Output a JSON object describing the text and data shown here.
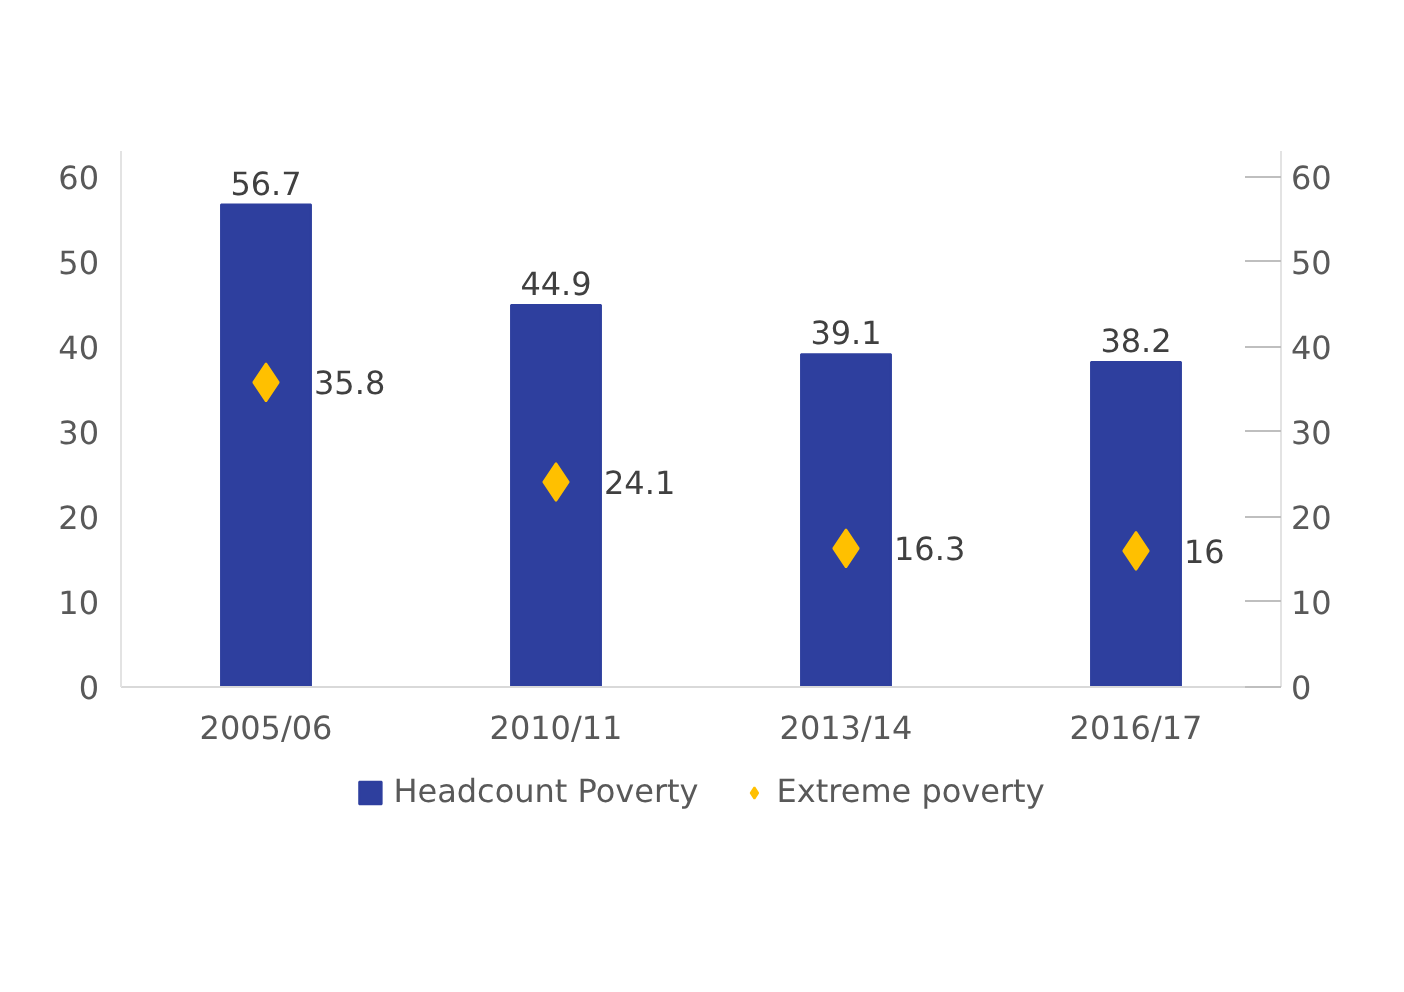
{
  "chart_data": {
    "type": "bar",
    "categories": [
      "2005/06",
      "2010/11",
      "2013/14",
      "2016/17"
    ],
    "series": [
      {
        "name": "Headcount Poverty",
        "color": "#2e3f9e",
        "values": [
          56.7,
          44.9,
          39.1,
          38.2
        ]
      },
      {
        "name": "Extreme poverty",
        "color": "#ffc000",
        "type": "scatter",
        "marker": "diamond",
        "values": [
          35.8,
          24.1,
          16.3,
          16
        ]
      }
    ],
    "ylim": [
      0,
      63
    ],
    "yticks": [
      0,
      10,
      20,
      30,
      40,
      50,
      60
    ],
    "y2lim": [
      0,
      63
    ],
    "y2ticks": [
      0,
      10,
      20,
      30,
      40,
      50,
      60
    ],
    "data_labels": true,
    "grid": false,
    "legend": "bottom"
  }
}
